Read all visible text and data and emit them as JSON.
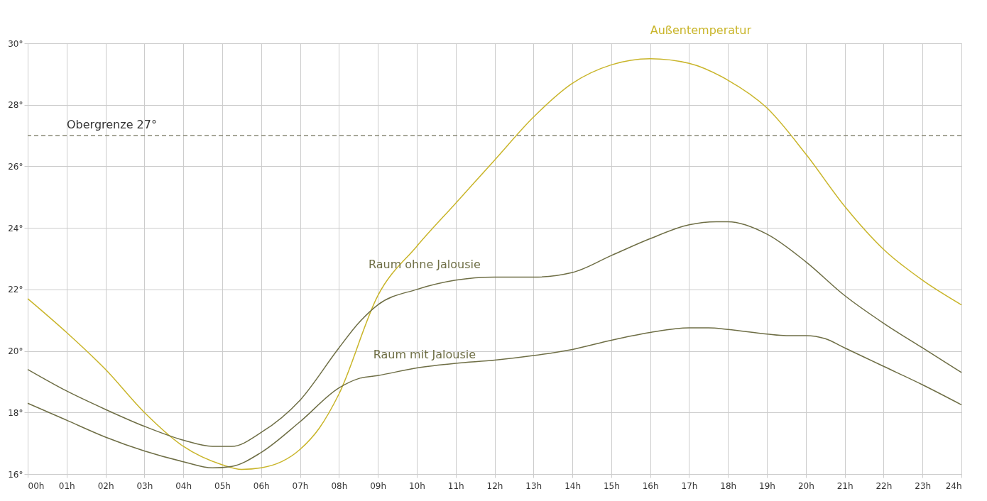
{
  "chart_data": {
    "type": "line",
    "xlim": [
      0,
      24
    ],
    "xticks": [
      {
        "value": 0,
        "label": "00h"
      },
      {
        "value": 1,
        "label": "01h"
      },
      {
        "value": 2,
        "label": "02h"
      },
      {
        "value": 3,
        "label": "03h"
      },
      {
        "value": 4,
        "label": "04h"
      },
      {
        "value": 5,
        "label": "05h"
      },
      {
        "value": 6,
        "label": "06h"
      },
      {
        "value": 7,
        "label": "07h"
      },
      {
        "value": 8,
        "label": "08h"
      },
      {
        "value": 9,
        "label": "09h"
      },
      {
        "value": 10,
        "label": "10h"
      },
      {
        "value": 11,
        "label": "11h"
      },
      {
        "value": 12,
        "label": "12h"
      },
      {
        "value": 13,
        "label": "13h"
      },
      {
        "value": 14,
        "label": "14h"
      },
      {
        "value": 15,
        "label": "15h"
      },
      {
        "value": 16,
        "label": "16h"
      },
      {
        "value": 17,
        "label": "17h"
      },
      {
        "value": 18,
        "label": "18h"
      },
      {
        "value": 19,
        "label": "19h"
      },
      {
        "value": 20,
        "label": "20h"
      },
      {
        "value": 21,
        "label": "21h"
      },
      {
        "value": 22,
        "label": "22h"
      },
      {
        "value": 23,
        "label": "23h"
      },
      {
        "value": 24,
        "label": "24h"
      }
    ],
    "ylim": [
      16,
      30
    ],
    "yticks": [
      {
        "value": 16,
        "label": "16°"
      },
      {
        "value": 18,
        "label": "18°"
      },
      {
        "value": 20,
        "label": "20°"
      },
      {
        "value": 22,
        "label": "22°"
      },
      {
        "value": 24,
        "label": "24°"
      },
      {
        "value": 26,
        "label": "26°"
      },
      {
        "value": 28,
        "label": "28°"
      },
      {
        "value": 30,
        "label": "30°"
      }
    ],
    "grid": true,
    "line_style": "solid",
    "marker": "none",
    "series": [
      {
        "name": "Außentemperatur",
        "color": "#c9b52a",
        "x": [
          0,
          1,
          2,
          3,
          4,
          5,
          5.5,
          6,
          7,
          7.5,
          8,
          9,
          10,
          11,
          12,
          13,
          14,
          15,
          16,
          17,
          18,
          19,
          20,
          21,
          22,
          23,
          24
        ],
        "values": [
          21.7,
          20.6,
          19.4,
          18.0,
          16.9,
          16.3,
          16.15,
          16.2,
          16.8,
          17.5,
          18.6,
          21.8,
          23.4,
          24.8,
          26.2,
          27.6,
          28.7,
          29.3,
          29.5,
          29.35,
          28.8,
          27.9,
          26.4,
          24.7,
          23.3,
          22.3,
          21.5
        ]
      },
      {
        "name": "Raum ohne Jalousie",
        "color": "#6e6e45",
        "x": [
          0,
          1,
          2,
          3,
          4,
          4.75,
          5.25,
          6,
          7,
          8,
          8.5,
          9,
          10,
          11,
          12,
          13,
          14,
          15,
          16,
          17,
          17.7,
          18,
          19,
          20,
          21,
          22,
          23,
          24
        ],
        "values": [
          19.4,
          18.7,
          18.1,
          17.55,
          17.1,
          16.9,
          16.9,
          17.35,
          18.4,
          20.1,
          20.9,
          21.5,
          22.0,
          22.3,
          22.4,
          22.4,
          22.55,
          23.1,
          23.65,
          24.1,
          24.2,
          24.2,
          23.8,
          22.9,
          21.8,
          20.9,
          20.1,
          19.3
        ]
      },
      {
        "name": "Raum mit Jalousie",
        "color": "#6e6e45",
        "x": [
          0,
          1,
          2,
          3,
          4,
          4.75,
          5.25,
          6,
          7,
          8,
          8.5,
          9,
          10,
          11,
          12,
          13,
          14,
          15,
          16,
          17,
          17.5,
          18,
          19,
          19.5,
          20,
          20.5,
          21,
          22,
          23,
          24
        ],
        "values": [
          18.3,
          17.75,
          17.2,
          16.75,
          16.4,
          16.2,
          16.25,
          16.7,
          17.7,
          18.8,
          19.1,
          19.2,
          19.45,
          19.6,
          19.7,
          19.85,
          20.05,
          20.35,
          20.6,
          20.75,
          20.75,
          20.7,
          20.55,
          20.5,
          20.5,
          20.4,
          20.1,
          19.5,
          18.9,
          18.25
        ]
      }
    ],
    "ref_lines": [
      {
        "axis": "y",
        "value": 27,
        "label": "Obergrenze 27°",
        "color": "#8a8a78",
        "line_style": "dashed"
      }
    ]
  }
}
